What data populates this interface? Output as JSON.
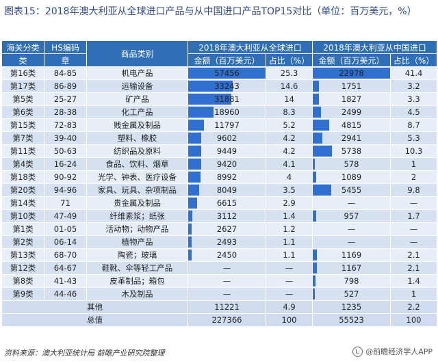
{
  "title": "图表15：2018年澳大利亚从全球进口产品与从中国进口产品TOP15对比（单位：百万美元，%）",
  "headers": {
    "customs_class_l1": "海关分类",
    "customs_class_l2": "类",
    "hs_code_l1": "HS编码",
    "hs_code_l2": "章",
    "product_category": "商品类别",
    "global_group": "2018年澳大利亚从全球进口",
    "china_group": "2018年澳大利亚从中国进口",
    "amount": "金额（百万美元）",
    "share": "占比（%）"
  },
  "colors": {
    "header": "#2e6fb7",
    "bar": "#2e6fd0"
  },
  "chart_data": {
    "type": "table",
    "global_max": 57456,
    "china_max": 22978,
    "rows": [
      {
        "cls": "第16类",
        "hs": "84-85",
        "cat": "机电产品",
        "g_amt": "57456",
        "g_val": 57456,
        "g_pct": "25.3",
        "c_amt": "22978",
        "c_val": 22978,
        "c_pct": "41.4"
      },
      {
        "cls": "第17类",
        "hs": "86-89",
        "cat": "运输设备",
        "g_amt": "33243",
        "g_val": 33243,
        "g_pct": "14.6",
        "c_amt": "1751",
        "c_val": 1751,
        "c_pct": "3.2"
      },
      {
        "cls": "第5类",
        "hs": "25-27",
        "cat": "矿产品",
        "g_amt": "31881",
        "g_val": 31881,
        "g_pct": "14",
        "c_amt": "1827",
        "c_val": 1827,
        "c_pct": "3.3"
      },
      {
        "cls": "第6类",
        "hs": "28-38",
        "cat": "化工产品",
        "g_amt": "18960",
        "g_val": 18960,
        "g_pct": "8.3",
        "c_amt": "2499",
        "c_val": 2499,
        "c_pct": "4.5"
      },
      {
        "cls": "第15类",
        "hs": "72-83",
        "cat": "贱金属及制品",
        "g_amt": "11797",
        "g_val": 11797,
        "g_pct": "5.2",
        "c_amt": "4815",
        "c_val": 4815,
        "c_pct": "8.7"
      },
      {
        "cls": "第7类",
        "hs": "39-40",
        "cat": "塑料、橡胶",
        "g_amt": "9602",
        "g_val": 9602,
        "g_pct": "4.2",
        "c_amt": "2941",
        "c_val": 2941,
        "c_pct": "5.3"
      },
      {
        "cls": "第11类",
        "hs": "50-63",
        "cat": "纺织品及原料",
        "g_amt": "9449",
        "g_val": 9449,
        "g_pct": "4.2",
        "c_amt": "5738",
        "c_val": 5738,
        "c_pct": "10.3"
      },
      {
        "cls": "第4类",
        "hs": "16-24",
        "cat": "食品、饮料、烟草",
        "g_amt": "9420",
        "g_val": 9420,
        "g_pct": "4.1",
        "c_amt": "578",
        "c_val": 578,
        "c_pct": "1"
      },
      {
        "cls": "第18类",
        "hs": "90-92",
        "cat": "光学、钟表、医疗设备",
        "g_amt": "8992",
        "g_val": 8992,
        "g_pct": "4",
        "c_amt": "1089",
        "c_val": 1089,
        "c_pct": "2"
      },
      {
        "cls": "第20类",
        "hs": "94-96",
        "cat": "家具、玩具、杂项制品",
        "g_amt": "8049",
        "g_val": 8049,
        "g_pct": "3.5",
        "c_amt": "5455",
        "c_val": 5455,
        "c_pct": "9.8"
      },
      {
        "cls": "第14类",
        "hs": "71",
        "cat": "贵金属及制品",
        "g_amt": "6615",
        "g_val": 6615,
        "g_pct": "2.9",
        "c_amt": "—",
        "c_val": 0,
        "c_pct": "—"
      },
      {
        "cls": "第10类",
        "hs": "47-49",
        "cat": "纤维素浆；纸张",
        "g_amt": "3112",
        "g_val": 3112,
        "g_pct": "1.4",
        "c_amt": "957",
        "c_val": 957,
        "c_pct": "1.7"
      },
      {
        "cls": "第1类",
        "hs": "01-05",
        "cat": "活动物；动物产品",
        "g_amt": "2627",
        "g_val": 2627,
        "g_pct": "1.2",
        "c_amt": "—",
        "c_val": 0,
        "c_pct": "—"
      },
      {
        "cls": "第2类",
        "hs": "06-14",
        "cat": "植物产品",
        "g_amt": "2493",
        "g_val": 2493,
        "g_pct": "1.1",
        "c_amt": "—",
        "c_val": 0,
        "c_pct": "—"
      },
      {
        "cls": "第13类",
        "hs": "68-70",
        "cat": "陶瓷；玻璃",
        "g_amt": "2450",
        "g_val": 2450,
        "g_pct": "1.1",
        "c_amt": "1169",
        "c_val": 1169,
        "c_pct": "2.1"
      },
      {
        "cls": "第12类",
        "hs": "64-67",
        "cat": "鞋靴、伞等轻工产品",
        "g_amt": "—",
        "g_val": 0,
        "g_pct": "—",
        "c_amt": "1167",
        "c_val": 1167,
        "c_pct": "2.1"
      },
      {
        "cls": "第8类",
        "hs": "41-43",
        "cat": "皮革制品；箱包",
        "g_amt": "—",
        "g_val": 0,
        "g_pct": "—",
        "c_amt": "798",
        "c_val": 798,
        "c_pct": "1.4"
      },
      {
        "cls": "第9类",
        "hs": "44-46",
        "cat": "木及制品",
        "g_amt": "—",
        "g_val": 0,
        "g_pct": "—",
        "c_amt": "527",
        "c_val": 527,
        "c_pct": "1"
      }
    ],
    "other": {
      "label": "其他",
      "g_amt": "11221",
      "g_pct": "4.9",
      "c_amt": "1235",
      "c_pct": "2.2"
    },
    "total": {
      "label": "总值",
      "g_amt": "227366",
      "g_pct": "100",
      "c_amt": "55523",
      "c_pct": "100"
    }
  },
  "source": "资料来源：澳大利亚统计局  前瞻产业研究院整理",
  "brand": "@前瞻经济学人APP"
}
